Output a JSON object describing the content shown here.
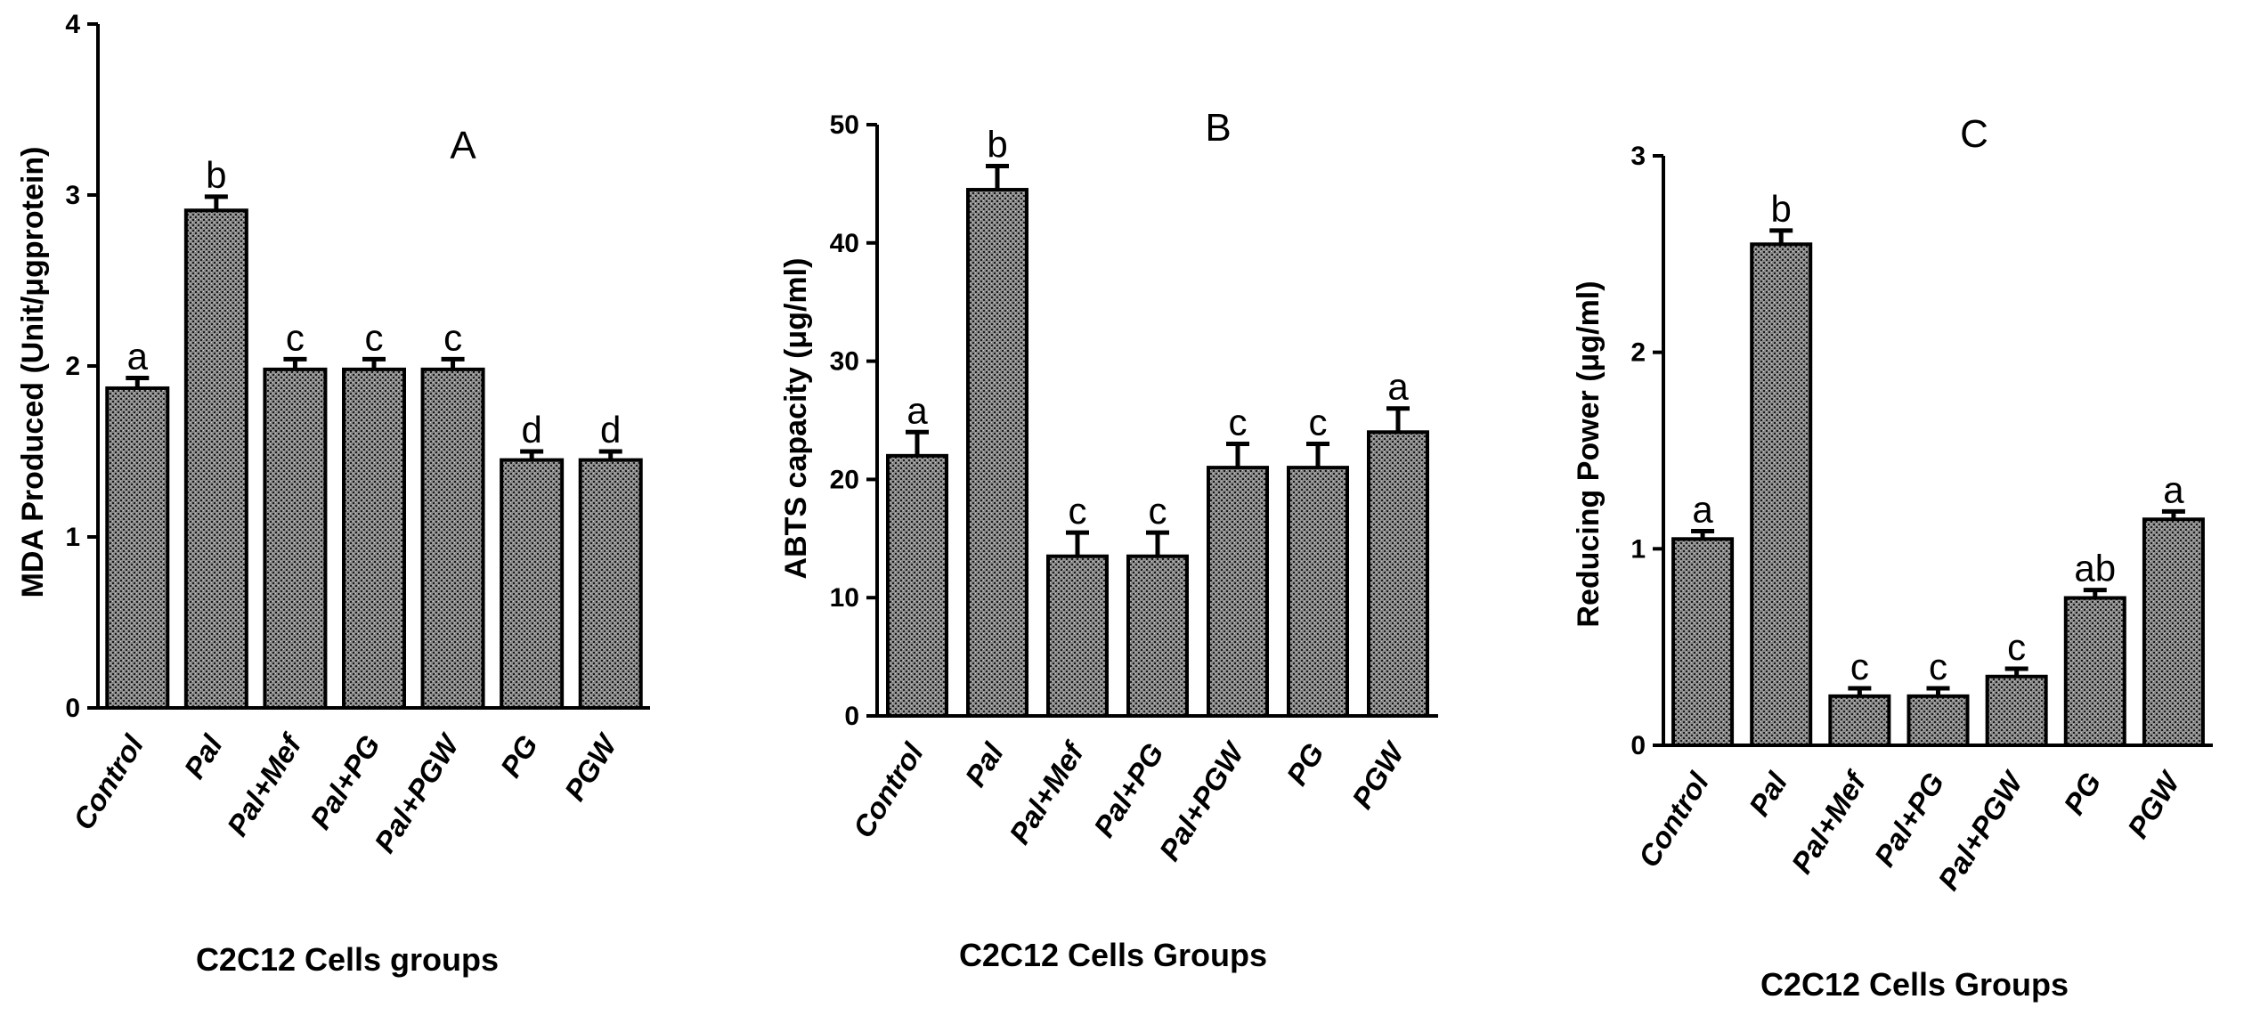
{
  "figure": {
    "panels_count": 3
  },
  "chart_data": [
    {
      "type": "bar",
      "panel": "A",
      "title": "A",
      "ylabel": "MDA Produced (Unit/μgprotein)",
      "xlabel": "C2C12 Cells groups",
      "categories": [
        "Control",
        "Pal",
        "Pal+Mef",
        "Pal+PG",
        "Pal+PGW",
        "PG",
        "PGW"
      ],
      "values": [
        1.87,
        2.91,
        1.98,
        1.98,
        1.98,
        1.45,
        1.45
      ],
      "errors": [
        0.06,
        0.08,
        0.06,
        0.06,
        0.06,
        0.05,
        0.05
      ],
      "significance": [
        "a",
        "b",
        "c",
        "c",
        "c",
        "d",
        "d"
      ],
      "ylim": [
        0,
        4
      ],
      "yticks": [
        0,
        1,
        2,
        3,
        4
      ]
    },
    {
      "type": "bar",
      "panel": "B",
      "title": "B",
      "ylabel": "ABTS capacity (μg/ml)",
      "xlabel": "C2C12 Cells Groups",
      "categories": [
        "Control",
        "Pal",
        "Pal+Mef",
        "Pal+PG",
        "Pal+PGW",
        "PG",
        "PGW"
      ],
      "values": [
        22,
        44.5,
        13.5,
        13.5,
        21,
        21,
        24
      ],
      "errors": [
        2.0,
        2.0,
        2.0,
        2.0,
        2.0,
        2.0,
        2.0
      ],
      "significance": [
        "a",
        "b",
        "c",
        "c",
        "c",
        "c",
        "a"
      ],
      "ylim": [
        0,
        50
      ],
      "yticks": [
        0,
        10,
        20,
        30,
        40,
        50
      ]
    },
    {
      "type": "bar",
      "panel": "C",
      "title": "C",
      "ylabel": "Reducing Power (μg/ml)",
      "xlabel": "C2C12 Cells Groups",
      "categories": [
        "Control",
        "Pal",
        "Pal+Mef",
        "Pal+PG",
        "Pal+PGW",
        "PG",
        "PGW"
      ],
      "values": [
        1.05,
        2.55,
        0.25,
        0.25,
        0.35,
        0.75,
        1.15
      ],
      "errors": [
        0.04,
        0.07,
        0.04,
        0.04,
        0.04,
        0.04,
        0.04
      ],
      "significance": [
        "a",
        "b",
        "c",
        "c",
        "c",
        "ab",
        "a"
      ],
      "ylim": [
        0,
        3
      ],
      "yticks": [
        0,
        1,
        2,
        3
      ]
    }
  ]
}
